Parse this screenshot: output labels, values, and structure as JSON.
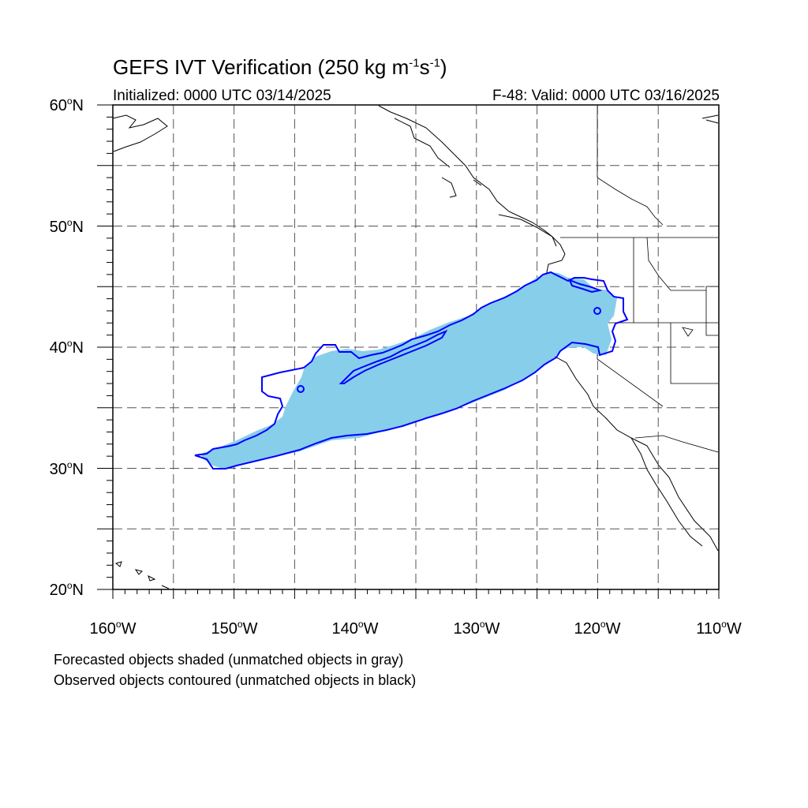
{
  "title": {
    "main": "GEFS IVT Verification (250 kg m",
    "exp1": "-1",
    "mid": "s",
    "exp2": "-1",
    "end": ")"
  },
  "initialized": "Initialized: 0000 UTC 03/14/2025",
  "valid": "F-48: Valid: 0000 UTC 03/16/2025",
  "map": {
    "lon_range": [
      -160,
      -110
    ],
    "lat_range": [
      20,
      60
    ],
    "projection": "cylindrical-equidistant",
    "grid": "dashed, every 5 degrees",
    "lat_labels": [
      "60",
      "50",
      "40",
      "30",
      "20"
    ],
    "lat_suffix": "N",
    "lon_labels": [
      "160",
      "150",
      "140",
      "130",
      "120",
      "110"
    ],
    "lon_suffix": "W",
    "colors": {
      "forecast_matched": "#87ceeb",
      "observed_matched": "#0000ff",
      "coastline": "#000000",
      "grid": "#555555"
    }
  },
  "captions": {
    "line1": "Forecasted objects shaded (unmatched objects in gray)",
    "line2": "Observed objects contoured (unmatched objects in black)"
  }
}
